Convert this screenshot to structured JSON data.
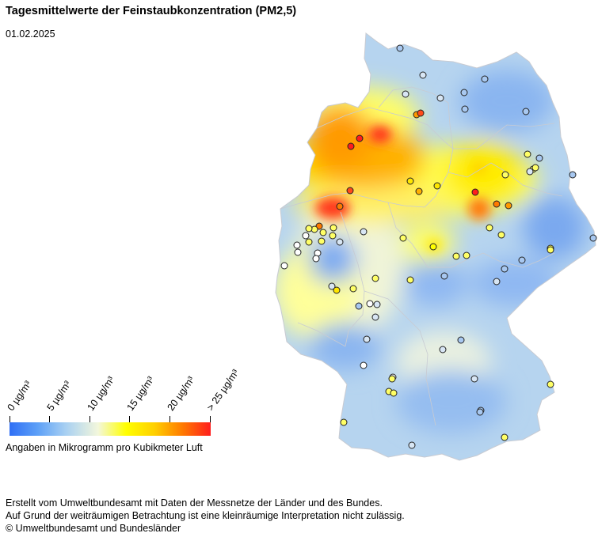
{
  "title": "Tagesmittelwerte der Feinstaubkonzentration (PM2,5)",
  "date": "01.02.2025",
  "legend": {
    "ticks": [
      "0 µg/m³",
      "5 µg/m³",
      "10 µg/m³",
      "15 µg/m³",
      "20 µg/m³",
      "> 25 µg/m³"
    ],
    "note": "Angaben in Mikrogramm pro Kubikmeter Luft",
    "colors": [
      "#2f6ff5",
      "#a8d0f2",
      "#f3f7dc",
      "#ffff00",
      "#ffd000",
      "#ff7a00",
      "#ff1d1d"
    ]
  },
  "footer": {
    "line1": "Erstellt vom Umweltbundesamt mit Daten der Messnetze der Länder und des Bundes.",
    "line2": "Auf Grund der weiträumigen Betrachtung ist eine kleinräumige Interpretation nicht zulässig.",
    "line3": "© Umweltbundesamt und Bundesländer"
  }
}
